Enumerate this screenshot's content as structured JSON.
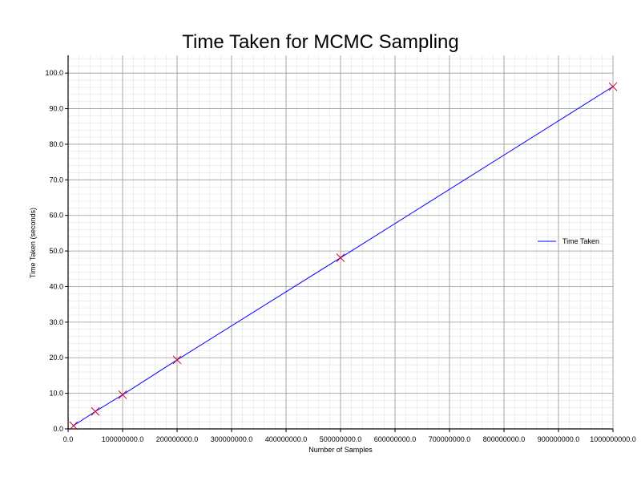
{
  "chart_data": {
    "type": "line",
    "title": "Time Taken for MCMC Sampling",
    "xlabel": "Number of Samples",
    "ylabel": "Time Taken (seconds)",
    "xlim": [
      0,
      1000000000
    ],
    "ylim": [
      0,
      105
    ],
    "grid": true,
    "legend_position": "right",
    "x_ticks": [
      0,
      100000000,
      200000000,
      300000000,
      400000000,
      500000000,
      600000000,
      700000000,
      800000000,
      900000000,
      1000000000
    ],
    "x_tick_labels": [
      "0.0",
      "100000000.0",
      "200000000.0",
      "300000000.0",
      "400000000.0",
      "500000000.0",
      "600000000.0",
      "700000000.0",
      "800000000.0",
      "900000000.0",
      "1000000000.0"
    ],
    "y_ticks": [
      0,
      10,
      20,
      30,
      40,
      50,
      60,
      70,
      80,
      90,
      100
    ],
    "y_tick_labels": [
      "0.0",
      "10.0",
      "20.0",
      "30.0",
      "40.0",
      "50.0",
      "60.0",
      "70.0",
      "80.0",
      "90.0",
      "100.0"
    ],
    "series": [
      {
        "name": "Time Taken",
        "color": "#0000ff",
        "marker_color": "#cc0033",
        "x": [
          10000000,
          50000000,
          100000000,
          200000000,
          500000000,
          1000000000
        ],
        "y": [
          0.9,
          4.9,
          9.6,
          19.4,
          48.1,
          96.2
        ]
      }
    ]
  }
}
